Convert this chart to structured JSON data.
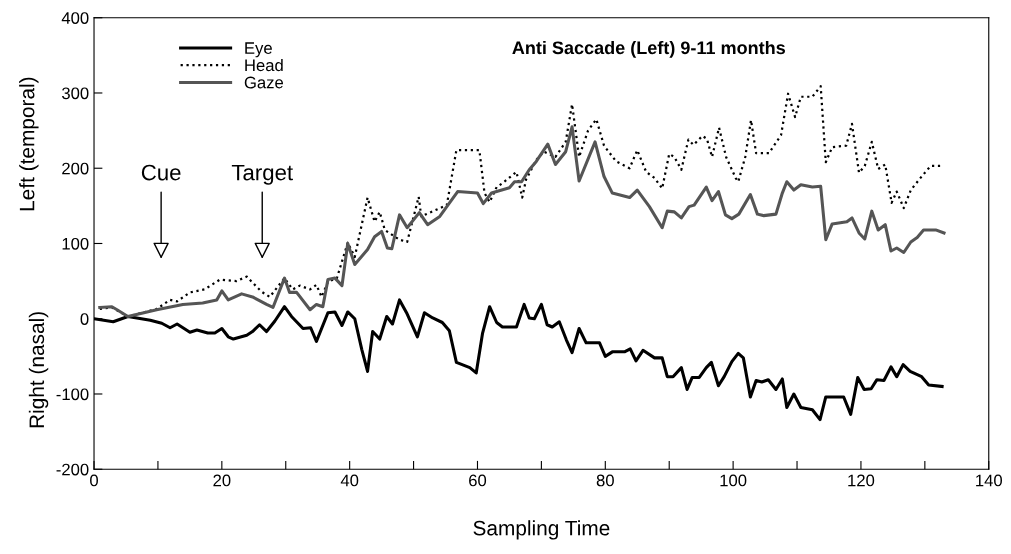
{
  "chart_data": {
    "type": "line",
    "title": "Anti Saccade (Left) 9-11 months",
    "xlabel": "Sampling Time",
    "ylabel": "Left (temporal)",
    "annotations": [
      "Cue",
      "Target",
      "Right (nasal)"
    ],
    "xlim": [
      0,
      140
    ],
    "ylim": [
      -200,
      400
    ],
    "xticks": [
      0,
      {
        "value": 10,
        "label": null
      },
      20,
      {
        "value": 30,
        "label": null
      },
      40,
      {
        "value": 50,
        "label": null
      },
      60,
      {
        "value": 70,
        "label": null
      },
      80,
      {
        "value": 90,
        "label": null
      },
      100,
      {
        "value": 110,
        "label": null
      },
      120,
      {
        "value": 130,
        "label": null
      },
      140
    ],
    "yticks": [
      -200,
      -100,
      0,
      100,
      200,
      300,
      400
    ],
    "grid": false,
    "legend": "top left",
    "marker": "none",
    "series": [
      {
        "name": "Eye",
        "color": "#000000",
        "line_style": "solid",
        "x": [
          0,
          3,
          5.3,
          8.8,
          10.6,
          11.9,
          13,
          15,
          16.1,
          17.8,
          18.9,
          20,
          21,
          21.8,
          23.9,
          24.8,
          25.9,
          27,
          28.3,
          29.8,
          30.9,
          32.7,
          33.9,
          34.8,
          36.6,
          37.7,
          38.8,
          39.7,
          40.8,
          41.9,
          42.8,
          43.6,
          44.7,
          45.8,
          46.7,
          47.8,
          48.9,
          50.6,
          51.7,
          53,
          54.5,
          55.6,
          56.7,
          58.8,
          59.8,
          60.8,
          61.9,
          63,
          63.9,
          66.1,
          67.3,
          68.1,
          68.9,
          70,
          70.9,
          71.7,
          72.8,
          73.9,
          74.8,
          75.9,
          77,
          79.1,
          80,
          81.1,
          83,
          83.9,
          84.8,
          85.9,
          87.7,
          88.9,
          89.7,
          90.6,
          91.9,
          92.8,
          93.6,
          94.7,
          95.8,
          96.6,
          97.7,
          98.6,
          99.8,
          100.8,
          101.6,
          102.7,
          103.6,
          104.5,
          105.5,
          106.7,
          107.7,
          108.4,
          109.5,
          110.6,
          112.4,
          113.6,
          114.5,
          117.3,
          118.4,
          119.5,
          120.5,
          121.6,
          122.5,
          123.6,
          124.7,
          125.6,
          126.6,
          127.7,
          129.5,
          130.6,
          132.7
        ],
        "values": [
          0,
          -4,
          3,
          -2,
          -6,
          -12,
          -7,
          -18,
          -15,
          -19,
          -19,
          -13,
          -24,
          -27,
          -22,
          -17,
          -8,
          -17,
          -3,
          16,
          3,
          -13,
          -12,
          -30,
          8,
          9,
          -9,
          9,
          0,
          -41,
          -70,
          -17,
          -27,
          3,
          -7,
          25,
          8,
          -24,
          8,
          1,
          -5,
          -16,
          -58,
          -65,
          -72,
          -19,
          16,
          -5,
          -11,
          -11,
          19,
          1,
          0,
          19,
          -8,
          -11,
          -4,
          -28,
          -45,
          -13,
          -32,
          -32,
          -50,
          -44,
          -44,
          -40,
          -56,
          -42,
          -52,
          -52,
          -77,
          -77,
          -65,
          -94,
          -78,
          -78,
          -65,
          -58,
          -89,
          -77,
          -57,
          -46,
          -52,
          -104,
          -82,
          -84,
          -81,
          -94,
          -80,
          -118,
          -100,
          -118,
          -121,
          -134,
          -104,
          -104,
          -127,
          -78,
          -94,
          -93,
          -81,
          -82,
          -64,
          -77,
          -61,
          -70,
          -77,
          -88,
          -90
        ]
      },
      {
        "name": "Head",
        "color": "#000000",
        "line_style": "dotted",
        "x": [
          0.9,
          2.8,
          5.3,
          9.8,
          11.9,
          13,
          15,
          17.3,
          19.7,
          22.3,
          23.9,
          24.8,
          26.2,
          27.5,
          29.8,
          31.1,
          32.2,
          33.8,
          34.8,
          35.6,
          36.6,
          38,
          39.7,
          40.8,
          42.8,
          43.9,
          44.7,
          45.5,
          47.8,
          49,
          50.8,
          51.2,
          55.2,
          56.7,
          60.3,
          61.1,
          61.9,
          63,
          63.9,
          65.5,
          66.1,
          67,
          67.6,
          69.2,
          70.4,
          72.2,
          73.8,
          74.8,
          75.9,
          77.3,
          78.6,
          79.8,
          81.7,
          83.8,
          85,
          86.4,
          87.7,
          88.9,
          90,
          90.8,
          91.9,
          93,
          93.8,
          95.2,
          95.9,
          96.7,
          97.8,
          98.9,
          100.4,
          100.8,
          101.9,
          102.8,
          103.6,
          105.6,
          107.5,
          108.6,
          109.7,
          110.6,
          112.4,
          113.7,
          114.5,
          115.5,
          117.7,
          118.6,
          119.7,
          120.6,
          121.7,
          122.7,
          123.8,
          124.8,
          125.6,
          126.7,
          127.8,
          129.5,
          130.9,
          132.5
        ],
        "values": [
          13,
          15,
          3,
          13,
          25,
          23,
          35,
          39,
          52,
          50,
          56,
          48,
          36,
          29,
          54,
          39,
          44,
          39,
          45,
          29,
          49,
          54,
          101,
          82,
          161,
          129,
          142,
          118,
          105,
          102,
          162,
          136,
          151,
          224,
          224,
          167,
          155,
          175,
          180,
          191,
          195,
          161,
          185,
          211,
          222,
          215,
          235,
          285,
          215,
          250,
          265,
          230,
          209,
          200,
          224,
          195,
          187,
          173,
          219,
          215,
          198,
          238,
          231,
          243,
          239,
          215,
          254,
          215,
          187,
          182,
          215,
          264,
          220,
          220,
          244,
          299,
          268,
          295,
          295,
          309,
          208,
          228,
          230,
          259,
          194,
          203,
          235,
          199,
          205,
          154,
          169,
          147,
          171,
          189,
          203,
          203
        ]
      },
      {
        "name": "Gaze",
        "color": "#555555",
        "line_style": "solid",
        "x": [
          0.9,
          2.8,
          3.6,
          5.3,
          9.8,
          13.9,
          17,
          19.2,
          20,
          21,
          23.1,
          24.8,
          27,
          28,
          29.8,
          30.6,
          31.7,
          33.8,
          34.8,
          35.8,
          36.6,
          37.7,
          38.8,
          39.7,
          40.8,
          42.8,
          43.9,
          45,
          45.9,
          46.6,
          47.8,
          49,
          50.9,
          52.2,
          54.1,
          55.2,
          56.9,
          60,
          60.9,
          62.2,
          65,
          65.8,
          66.9,
          68.1,
          69.2,
          71,
          72.2,
          73.8,
          74.8,
          75.9,
          78.4,
          79.8,
          81.1,
          83.8,
          85,
          86.9,
          88.9,
          89.7,
          90.8,
          91.9,
          93.1,
          93.9,
          95.8,
          96.7,
          97.7,
          98.8,
          99.8,
          100.9,
          102.7,
          103.8,
          104.8,
          106.7,
          107.7,
          108.4,
          109.5,
          110.6,
          112.4,
          113.7,
          114.5,
          115.5,
          117.8,
          118.6,
          119.7,
          120.6,
          121.7,
          122.7,
          123.8,
          124.7,
          125.6,
          126.7,
          127.8,
          128.8,
          129.8,
          131.7,
          133
        ],
        "values": [
          15,
          16,
          12,
          3,
          12,
          19,
          21,
          25,
          37,
          25,
          33,
          29,
          19,
          15,
          54,
          35,
          35,
          12,
          19,
          16,
          52,
          54,
          44,
          100,
          72,
          92,
          109,
          116,
          94,
          93,
          138,
          121,
          141,
          125,
          136,
          149,
          169,
          167,
          153,
          167,
          174,
          182,
          182,
          198,
          209,
          232,
          205,
          222,
          255,
          183,
          235,
          189,
          167,
          161,
          171,
          149,
          121,
          143,
          142,
          134,
          149,
          151,
          175,
          157,
          169,
          138,
          133,
          139,
          165,
          139,
          137,
          139,
          167,
          182,
          171,
          178,
          175,
          176,
          105,
          126,
          129,
          134,
          114,
          106,
          143,
          118,
          125,
          90,
          94,
          88,
          102,
          108,
          118,
          118,
          114
        ]
      }
    ]
  }
}
